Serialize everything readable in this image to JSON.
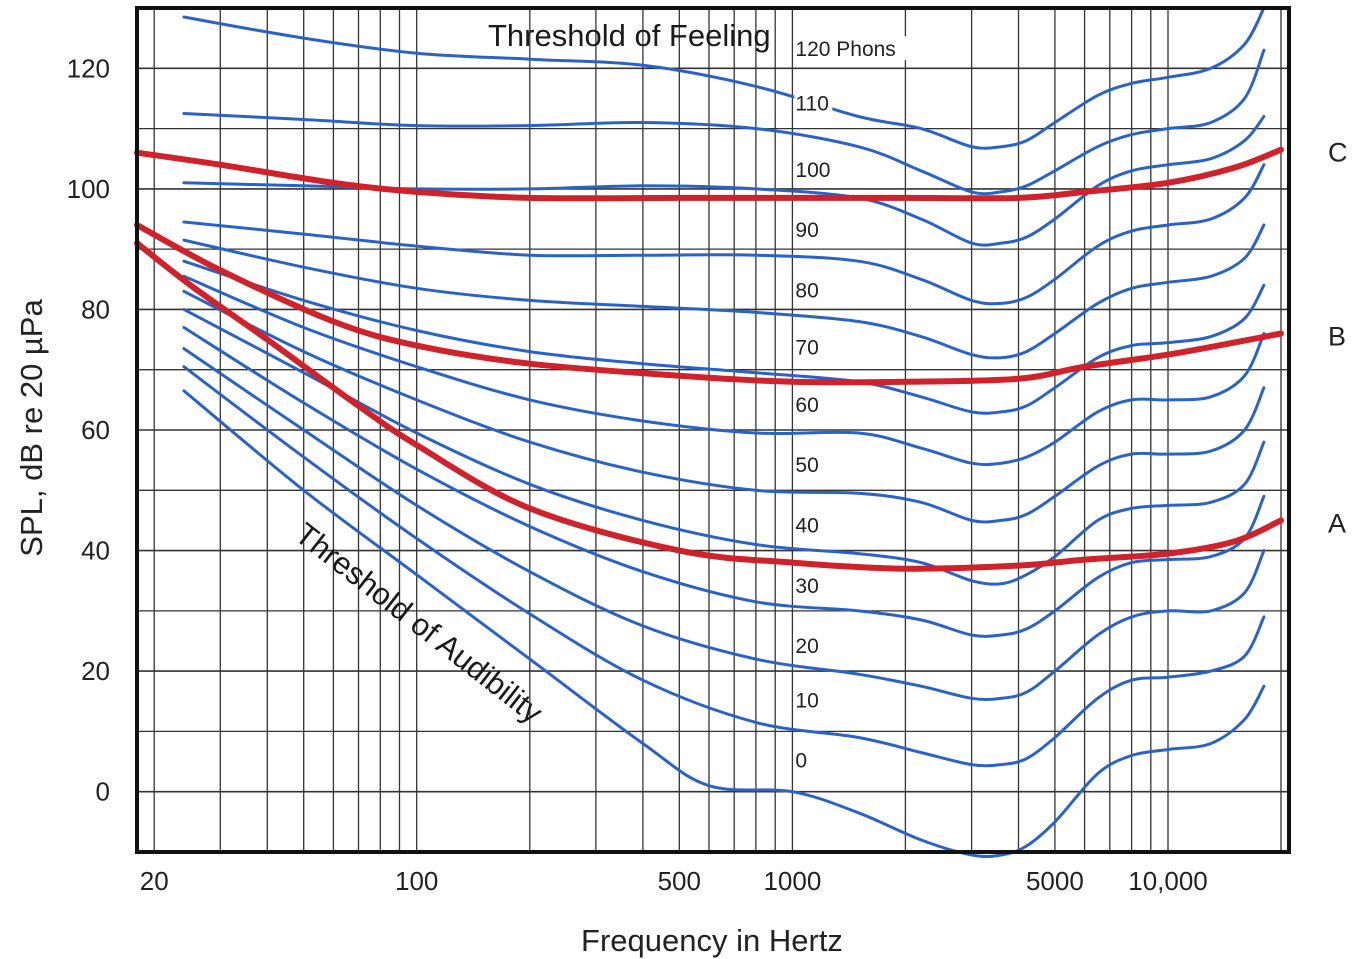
{
  "chart_data": {
    "type": "line",
    "xlabel": "Frequency in Hertz",
    "ylabel": "SPL, dB re 20 µPa",
    "xscale": "log",
    "xlim": [
      18,
      21000
    ],
    "ylim": [
      -10,
      130
    ],
    "xticks": [
      {
        "value": 20,
        "label": "20"
      },
      {
        "value": 100,
        "label": "100"
      },
      {
        "value": 500,
        "label": "500"
      },
      {
        "value": 1000,
        "label": "1000"
      },
      {
        "value": 5000,
        "label": "5000"
      },
      {
        "value": 10000,
        "label": "10,000"
      }
    ],
    "yticks": [
      {
        "value": 0,
        "label": "0"
      },
      {
        "value": 20,
        "label": "20"
      },
      {
        "value": 40,
        "label": "40"
      },
      {
        "value": 60,
        "label": "60"
      },
      {
        "value": 80,
        "label": "80"
      },
      {
        "value": 100,
        "label": "100"
      },
      {
        "value": 120,
        "label": "120"
      }
    ],
    "grid": true,
    "annotations": {
      "threshold_feeling": "Threshold of Feeling",
      "threshold_audibility": "Threshold of Audibility"
    },
    "phon_labels": [
      {
        "text": "120 Phons",
        "x": 1000,
        "y": 122
      },
      {
        "text": "110",
        "x": 1000,
        "y": 113
      },
      {
        "text": "100",
        "x": 1000,
        "y": 102
      },
      {
        "text": "90",
        "x": 1000,
        "y": 92
      },
      {
        "text": "80",
        "x": 1000,
        "y": 82
      },
      {
        "text": "70",
        "x": 1000,
        "y": 72.5
      },
      {
        "text": "60",
        "x": 1000,
        "y": 63
      },
      {
        "text": "50",
        "x": 1000,
        "y": 53
      },
      {
        "text": "40",
        "x": 1000,
        "y": 43
      },
      {
        "text": "30",
        "x": 1000,
        "y": 33
      },
      {
        "text": "20",
        "x": 1000,
        "y": 23
      },
      {
        "text": "10",
        "x": 1000,
        "y": 14
      },
      {
        "text": "0",
        "x": 1000,
        "y": 4
      }
    ],
    "colors": {
      "loudness": "#2b63c4",
      "weighting": "#d0222a",
      "grid": "#333333"
    },
    "series": [
      {
        "group": "loudness",
        "x": [
          24,
          50,
          100,
          200,
          400,
          800,
          1500,
          2200,
          3000,
          3600,
          4200,
          5000,
          6500,
          8000,
          10000,
          13000,
          16000,
          18000
        ],
        "y": [
          128.5,
          125,
          122.5,
          121.5,
          120.5,
          117,
          112,
          110,
          107,
          107,
          108,
          111,
          115.5,
          117.5,
          118.5,
          120,
          124,
          130
        ]
      },
      {
        "group": "loudness",
        "x": [
          24,
          50,
          100,
          200,
          400,
          800,
          1500,
          2200,
          3000,
          3600,
          4200,
          5000,
          6500,
          8000,
          10000,
          13000,
          16000,
          18000
        ],
        "y": [
          112.5,
          111.5,
          110.5,
          110.5,
          111,
          110,
          107,
          103,
          99.5,
          99.5,
          100.5,
          103,
          107,
          109,
          110,
          111,
          115,
          123
        ]
      },
      {
        "group": "loudness",
        "x": [
          24,
          50,
          100,
          200,
          400,
          800,
          1500,
          2200,
          3000,
          3600,
          4200,
          5000,
          6500,
          8000,
          10000,
          13000,
          16000,
          18000
        ],
        "y": [
          101,
          100.5,
          100,
          100,
          100.5,
          100,
          98.5,
          95,
          91,
          91,
          92,
          95,
          100.5,
          103,
          104,
          105,
          108,
          112
        ]
      },
      {
        "group": "loudness",
        "x": [
          24,
          50,
          100,
          200,
          400,
          800,
          1500,
          2200,
          3000,
          3600,
          4200,
          5000,
          6500,
          8000,
          10000,
          13000,
          16000,
          18000
        ],
        "y": [
          94.5,
          92.5,
          90.5,
          89,
          89,
          89,
          88,
          85,
          81.5,
          81,
          82,
          85,
          90.5,
          93,
          94,
          95,
          98.5,
          104
        ]
      },
      {
        "group": "loudness",
        "x": [
          24,
          50,
          100,
          200,
          400,
          800,
          1500,
          2200,
          3000,
          3600,
          4200,
          5000,
          6500,
          8000,
          10000,
          13000,
          16000,
          18000
        ],
        "y": [
          91.5,
          87,
          83.5,
          81.5,
          80.5,
          79.5,
          78,
          75.5,
          72.5,
          72,
          73,
          76,
          81,
          83.5,
          84.5,
          85.5,
          88.5,
          94
        ]
      },
      {
        "group": "loudness",
        "x": [
          24,
          50,
          100,
          200,
          400,
          800,
          1500,
          2200,
          3000,
          3600,
          4200,
          5000,
          6500,
          8000,
          10000,
          13000,
          16000,
          18000
        ],
        "y": [
          88,
          81.5,
          76.5,
          73,
          71,
          69.5,
          68,
          65.5,
          63,
          63,
          64,
          67,
          72,
          74,
          74.5,
          75.5,
          78.5,
          84
        ]
      },
      {
        "group": "loudness",
        "x": [
          24,
          50,
          100,
          200,
          400,
          800,
          1500,
          2200,
          3000,
          3600,
          4200,
          5000,
          6500,
          8000,
          10000,
          13000,
          16000,
          18000
        ],
        "y": [
          85.5,
          77,
          70.5,
          65,
          61.5,
          59.5,
          59.5,
          57,
          54.5,
          54.5,
          55.5,
          58,
          63,
          65,
          65,
          65.5,
          69,
          76
        ]
      },
      {
        "group": "loudness",
        "x": [
          24,
          50,
          100,
          200,
          400,
          800,
          1500,
          2200,
          3000,
          3600,
          4200,
          5000,
          6500,
          8000,
          10000,
          13000,
          16000,
          18000
        ],
        "y": [
          83,
          73,
          65,
          58,
          53,
          50,
          49.5,
          48,
          45,
          45,
          46,
          49,
          54,
          56,
          56,
          56.5,
          60,
          67
        ]
      },
      {
        "group": "loudness",
        "x": [
          24,
          50,
          100,
          200,
          400,
          800,
          1500,
          2200,
          3000,
          3600,
          4200,
          5000,
          6500,
          8000,
          10000,
          13000,
          16000,
          18000
        ],
        "y": [
          80,
          69.5,
          59.5,
          51,
          45,
          41,
          39.5,
          38,
          35,
          34.5,
          36,
          39,
          45,
          47,
          47.5,
          48,
          51,
          58
        ]
      },
      {
        "group": "loudness",
        "x": [
          24,
          50,
          100,
          200,
          400,
          800,
          1500,
          2200,
          3000,
          3600,
          4200,
          5000,
          6500,
          8000,
          10000,
          13000,
          16000,
          18000
        ],
        "y": [
          77,
          64.5,
          53.5,
          44,
          36.5,
          31.5,
          30,
          28.5,
          26,
          26,
          27,
          30,
          35.5,
          38,
          38.5,
          39,
          42,
          49
        ]
      },
      {
        "group": "loudness",
        "x": [
          24,
          50,
          100,
          200,
          400,
          800,
          1500,
          2200,
          3000,
          3600,
          4200,
          5000,
          6500,
          8000,
          10000,
          13000,
          16000,
          18000
        ],
        "y": [
          73.5,
          60,
          47.5,
          36.5,
          27.5,
          22,
          19.5,
          17.5,
          15.5,
          15.5,
          16.5,
          20,
          26,
          29,
          30,
          30,
          33,
          40
        ]
      },
      {
        "group": "loudness",
        "x": [
          24,
          50,
          100,
          200,
          400,
          800,
          1500,
          2200,
          3000,
          3600,
          4200,
          5000,
          6500,
          8000,
          10000,
          13000,
          16000,
          18000
        ],
        "y": [
          70.5,
          55.5,
          42,
          29.5,
          18.5,
          11.5,
          9,
          6.5,
          4.5,
          4.5,
          5.5,
          9,
          15.5,
          18.5,
          19,
          20,
          22.5,
          29
        ]
      },
      {
        "group": "loudness",
        "x": [
          24,
          50,
          100,
          200,
          400,
          600,
          1000,
          1500,
          2200,
          3000,
          3600,
          4200,
          5000,
          6500,
          8000,
          10000,
          13000,
          16000,
          18000
        ],
        "y": [
          66.5,
          50,
          36,
          22,
          8,
          1,
          0,
          -3.5,
          -8,
          -10.5,
          -10.5,
          -9,
          -5,
          3,
          6,
          7,
          8,
          12,
          17.5
        ]
      },
      {
        "group": "weighting",
        "name": "C",
        "x": [
          18,
          30,
          60,
          100,
          200,
          500,
          1000,
          2000,
          4000,
          6000,
          10000,
          15000,
          20000
        ],
        "y": [
          106,
          104,
          101,
          99.5,
          98.5,
          98.5,
          98.5,
          98.5,
          98.5,
          99.5,
          101,
          103.5,
          106.5
        ]
      },
      {
        "group": "weighting",
        "name": "B",
        "x": [
          18,
          30,
          60,
          100,
          200,
          500,
          1000,
          2000,
          4000,
          6000,
          10000,
          15000,
          20000
        ],
        "y": [
          94,
          86.5,
          78,
          74,
          71,
          69,
          68,
          68,
          68.5,
          70.5,
          72.5,
          74.5,
          76
        ]
      },
      {
        "group": "weighting",
        "name": "A",
        "x": [
          18,
          25,
          40,
          70,
          100,
          200,
          500,
          1000,
          2000,
          4000,
          6000,
          10000,
          15000,
          20000
        ],
        "y": [
          91,
          84,
          75,
          64,
          57.5,
          47,
          40,
          38,
          37,
          37.5,
          38.5,
          39.5,
          41.5,
          45
        ]
      }
    ],
    "weighting_labels": [
      "C",
      "B",
      "A"
    ]
  }
}
